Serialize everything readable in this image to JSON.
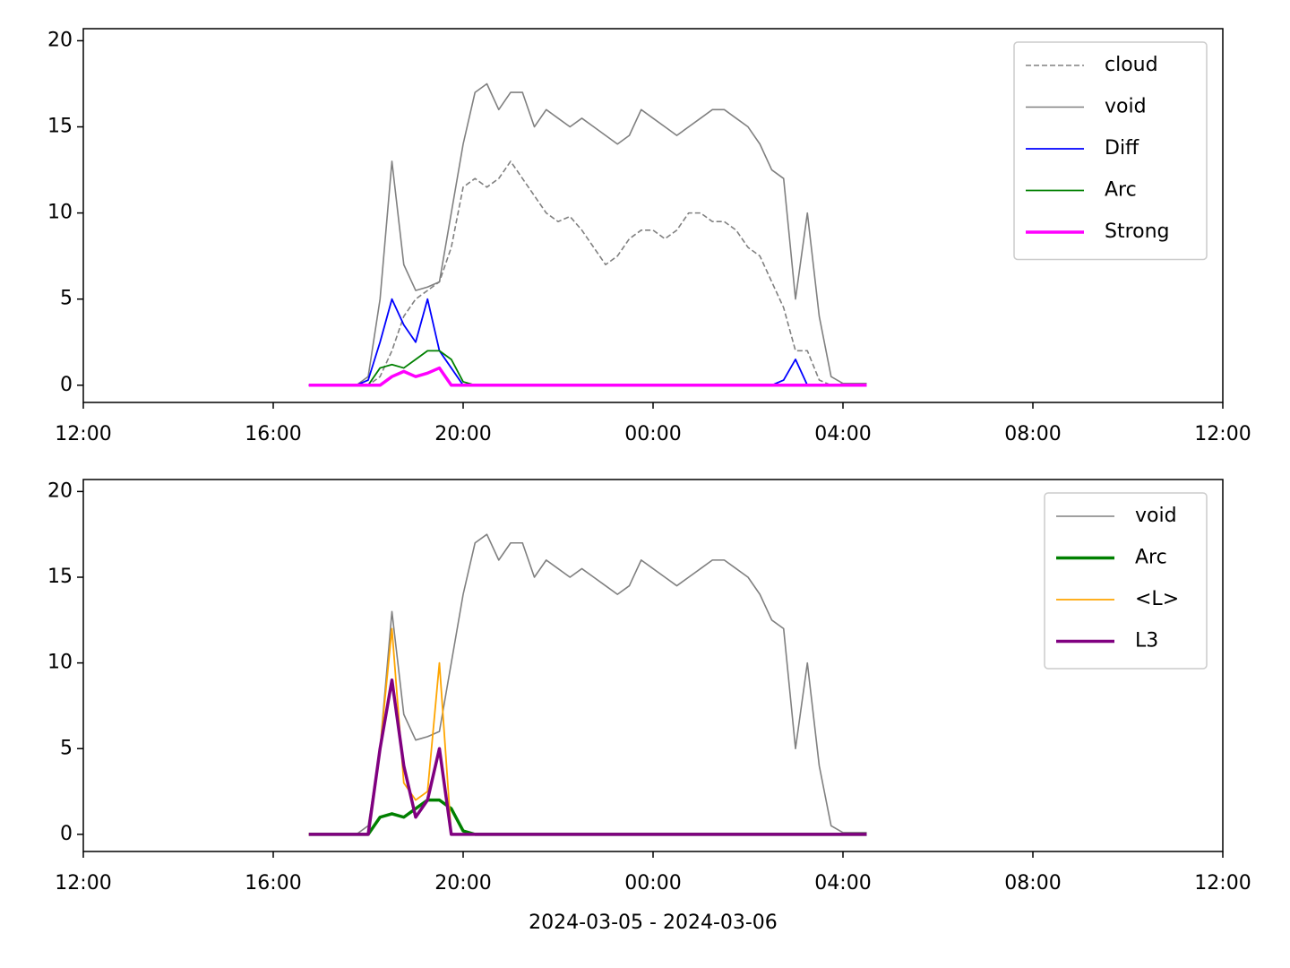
{
  "chart_data": [
    {
      "type": "line",
      "x": [
        "2024-03-05T16:45",
        "2024-03-05T17:00",
        "2024-03-05T17:15",
        "2024-03-05T17:30",
        "2024-03-05T17:45",
        "2024-03-05T18:00",
        "2024-03-05T18:15",
        "2024-03-05T18:30",
        "2024-03-05T18:45",
        "2024-03-05T19:00",
        "2024-03-05T19:15",
        "2024-03-05T19:30",
        "2024-03-05T19:45",
        "2024-03-05T20:00",
        "2024-03-05T20:15",
        "2024-03-05T20:30",
        "2024-03-05T20:45",
        "2024-03-05T21:00",
        "2024-03-05T21:15",
        "2024-03-05T21:30",
        "2024-03-05T21:45",
        "2024-03-05T22:00",
        "2024-03-05T22:15",
        "2024-03-05T22:30",
        "2024-03-05T22:45",
        "2024-03-05T23:00",
        "2024-03-05T23:15",
        "2024-03-05T23:30",
        "2024-03-05T23:45",
        "2024-03-06T00:00",
        "2024-03-06T00:15",
        "2024-03-06T00:30",
        "2024-03-06T00:45",
        "2024-03-06T01:00",
        "2024-03-06T01:15",
        "2024-03-06T01:30",
        "2024-03-06T01:45",
        "2024-03-06T02:00",
        "2024-03-06T02:15",
        "2024-03-06T02:30",
        "2024-03-06T02:45",
        "2024-03-06T03:00",
        "2024-03-06T03:15",
        "2024-03-06T03:30",
        "2024-03-06T03:45",
        "2024-03-06T04:00",
        "2024-03-06T04:15",
        "2024-03-06T04:30"
      ],
      "series": [
        {
          "name": "cloud",
          "color": "#808080",
          "linestyle": "dashed",
          "linewidth": 1.6,
          "values": [
            0,
            0,
            0,
            0,
            0,
            0,
            0.5,
            2,
            4,
            5,
            5.5,
            6,
            8,
            11.5,
            12,
            11.5,
            12,
            13,
            12,
            11,
            10,
            9.5,
            9.8,
            9,
            8,
            7,
            7.5,
            8.5,
            9,
            9,
            8.5,
            9,
            10,
            10,
            9.5,
            9.5,
            9,
            8,
            7.5,
            6,
            4.5,
            2,
            2,
            0.3,
            0,
            0.1,
            0.1,
            0.1
          ]
        },
        {
          "name": "void",
          "color": "#808080",
          "linestyle": "solid",
          "linewidth": 1.6,
          "values": [
            0,
            0,
            0,
            0,
            0,
            0.5,
            5,
            13,
            7,
            5.5,
            5.7,
            6,
            10,
            14,
            17,
            17.5,
            16,
            17,
            17,
            15,
            16,
            15.5,
            15,
            15.5,
            15,
            14.5,
            14,
            14.5,
            16,
            15.5,
            15,
            14.5,
            15,
            15.5,
            16,
            16,
            15.5,
            15,
            14,
            12.5,
            12,
            5,
            10,
            4,
            0.5,
            0.1,
            0.1,
            0.1
          ]
        },
        {
          "name": "Diff",
          "color": "#0000ff",
          "linestyle": "solid",
          "linewidth": 1.8,
          "values": [
            0,
            0,
            0,
            0,
            0,
            0.3,
            2.5,
            5,
            3.5,
            2.5,
            5,
            2,
            1,
            0,
            0,
            0,
            0,
            0,
            0,
            0,
            0,
            0,
            0,
            0,
            0,
            0,
            0,
            0,
            0,
            0,
            0,
            0,
            0,
            0,
            0,
            0,
            0,
            0,
            0,
            0,
            0.3,
            1.5,
            0,
            0,
            0,
            0,
            0,
            0
          ]
        },
        {
          "name": "Arc",
          "color": "#008000",
          "linestyle": "solid",
          "linewidth": 1.8,
          "values": [
            0,
            0,
            0,
            0,
            0,
            0,
            1,
            1.2,
            1,
            1.5,
            2,
            2,
            1.5,
            0.2,
            0,
            0,
            0,
            0,
            0,
            0,
            0,
            0,
            0,
            0,
            0,
            0,
            0,
            0,
            0,
            0,
            0,
            0,
            0,
            0,
            0,
            0,
            0,
            0,
            0,
            0,
            0,
            0,
            0,
            0,
            0,
            0,
            0,
            0
          ]
        },
        {
          "name": "Strong",
          "color": "#ff00ff",
          "linestyle": "solid",
          "linewidth": 3.5,
          "values": [
            0,
            0,
            0,
            0,
            0,
            0,
            0,
            0.5,
            0.8,
            0.5,
            0.7,
            1,
            0,
            0,
            0,
            0,
            0,
            0,
            0,
            0,
            0,
            0,
            0,
            0,
            0,
            0,
            0,
            0,
            0,
            0,
            0,
            0,
            0,
            0,
            0,
            0,
            0,
            0,
            0,
            0,
            0,
            0,
            0,
            0,
            0,
            0,
            0,
            0
          ]
        }
      ],
      "xlim": [
        "2024-03-05T12:00",
        "2024-03-06T12:00"
      ],
      "xticks": [
        {
          "value": "2024-03-05T12:00",
          "label": "12:00"
        },
        {
          "value": "2024-03-05T16:00",
          "label": "16:00"
        },
        {
          "value": "2024-03-05T20:00",
          "label": "20:00"
        },
        {
          "value": "2024-03-06T00:00",
          "label": "00:00"
        },
        {
          "value": "2024-03-06T04:00",
          "label": "04:00"
        },
        {
          "value": "2024-03-06T08:00",
          "label": "08:00"
        },
        {
          "value": "2024-03-06T12:00",
          "label": "12:00"
        }
      ],
      "ylim": [
        -1,
        20.7
      ],
      "yticks": [
        0,
        5,
        10,
        15,
        20
      ],
      "legend": "upper right"
    },
    {
      "type": "line",
      "x": [
        "2024-03-05T16:45",
        "2024-03-05T17:00",
        "2024-03-05T17:15",
        "2024-03-05T17:30",
        "2024-03-05T17:45",
        "2024-03-05T18:00",
        "2024-03-05T18:15",
        "2024-03-05T18:30",
        "2024-03-05T18:45",
        "2024-03-05T19:00",
        "2024-03-05T19:15",
        "2024-03-05T19:30",
        "2024-03-05T19:45",
        "2024-03-05T20:00",
        "2024-03-05T20:15",
        "2024-03-05T20:30",
        "2024-03-05T20:45",
        "2024-03-05T21:00",
        "2024-03-05T21:15",
        "2024-03-05T21:30",
        "2024-03-05T21:45",
        "2024-03-05T22:00",
        "2024-03-05T22:15",
        "2024-03-05T22:30",
        "2024-03-05T22:45",
        "2024-03-05T23:00",
        "2024-03-05T23:15",
        "2024-03-05T23:30",
        "2024-03-05T23:45",
        "2024-03-06T00:00",
        "2024-03-06T00:15",
        "2024-03-06T00:30",
        "2024-03-06T00:45",
        "2024-03-06T01:00",
        "2024-03-06T01:15",
        "2024-03-06T01:30",
        "2024-03-06T01:45",
        "2024-03-06T02:00",
        "2024-03-06T02:15",
        "2024-03-06T02:30",
        "2024-03-06T02:45",
        "2024-03-06T03:00",
        "2024-03-06T03:15",
        "2024-03-06T03:30",
        "2024-03-06T03:45",
        "2024-03-06T04:00",
        "2024-03-06T04:15",
        "2024-03-06T04:30"
      ],
      "series": [
        {
          "name": "void",
          "color": "#808080",
          "linestyle": "solid",
          "linewidth": 1.6,
          "values": [
            0,
            0,
            0,
            0,
            0,
            0.5,
            5,
            13,
            7,
            5.5,
            5.7,
            6,
            10,
            14,
            17,
            17.5,
            16,
            17,
            17,
            15,
            16,
            15.5,
            15,
            15.5,
            15,
            14.5,
            14,
            14.5,
            16,
            15.5,
            15,
            14.5,
            15,
            15.5,
            16,
            16,
            15.5,
            15,
            14,
            12.5,
            12,
            5,
            10,
            4,
            0.5,
            0.1,
            0.1,
            0.1
          ]
        },
        {
          "name": "Arc",
          "color": "#008000",
          "linestyle": "solid",
          "linewidth": 3.5,
          "values": [
            0,
            0,
            0,
            0,
            0,
            0,
            1,
            1.2,
            1,
            1.5,
            2,
            2,
            1.5,
            0.2,
            0,
            0,
            0,
            0,
            0,
            0,
            0,
            0,
            0,
            0,
            0,
            0,
            0,
            0,
            0,
            0,
            0,
            0,
            0,
            0,
            0,
            0,
            0,
            0,
            0,
            0,
            0,
            0,
            0,
            0,
            0,
            0,
            0,
            0
          ]
        },
        {
          "name": "<L>",
          "color": "#ffa500",
          "linestyle": "solid",
          "linewidth": 1.8,
          "values": [
            0,
            0,
            0,
            0,
            0,
            0,
            5,
            12,
            3,
            2,
            2.5,
            10,
            0,
            0,
            0,
            0,
            0,
            0,
            0,
            0,
            0,
            0,
            0,
            0,
            0,
            0,
            0,
            0,
            0,
            0,
            0,
            0,
            0,
            0,
            0,
            0,
            0,
            0,
            0,
            0,
            0,
            0,
            0,
            0,
            0,
            0,
            0,
            0
          ]
        },
        {
          "name": "L3",
          "color": "#800080",
          "linestyle": "solid",
          "linewidth": 3.5,
          "values": [
            0,
            0,
            0,
            0,
            0,
            0,
            5,
            9,
            4,
            1,
            2,
            5,
            0,
            0,
            0,
            0,
            0,
            0,
            0,
            0,
            0,
            0,
            0,
            0,
            0,
            0,
            0,
            0,
            0,
            0,
            0,
            0,
            0,
            0,
            0,
            0,
            0,
            0,
            0,
            0,
            0,
            0,
            0,
            0,
            0,
            0,
            0,
            0
          ]
        }
      ],
      "xlim": [
        "2024-03-05T12:00",
        "2024-03-06T12:00"
      ],
      "xticks": [
        {
          "value": "2024-03-05T12:00",
          "label": "12:00"
        },
        {
          "value": "2024-03-05T16:00",
          "label": "16:00"
        },
        {
          "value": "2024-03-05T20:00",
          "label": "20:00"
        },
        {
          "value": "2024-03-06T00:00",
          "label": "00:00"
        },
        {
          "value": "2024-03-06T04:00",
          "label": "04:00"
        },
        {
          "value": "2024-03-06T08:00",
          "label": "08:00"
        },
        {
          "value": "2024-03-06T12:00",
          "label": "12:00"
        }
      ],
      "ylim": [
        -1,
        20.7
      ],
      "yticks": [
        0,
        5,
        10,
        15,
        20
      ],
      "legend": "upper right",
      "xlabel": "2024-03-05 - 2024-03-06"
    }
  ]
}
